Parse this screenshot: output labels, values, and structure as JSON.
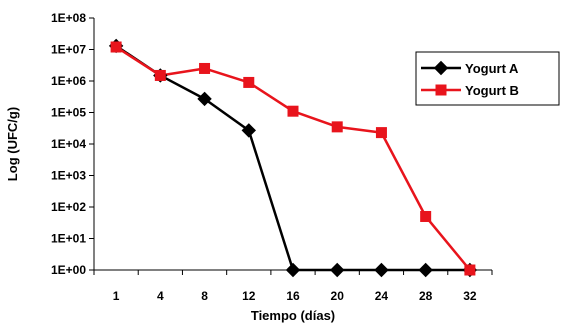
{
  "chart_data": {
    "type": "line",
    "title": "",
    "xlabel": "Tiempo (días)",
    "ylabel": "Log (UFC/g)",
    "categories": [
      "1",
      "4",
      "8",
      "12",
      "16",
      "20",
      "24",
      "28",
      "32"
    ],
    "y_scale": "log",
    "ylim": [
      1,
      100000000
    ],
    "y_ticks": [
      "1E+00",
      "1E+01",
      "1E+02",
      "1E+03",
      "1E+04",
      "1E+05",
      "1E+06",
      "1E+07",
      "1E+08"
    ],
    "grid": false,
    "legend_position": "right",
    "series": [
      {
        "name": "Yogurt A",
        "color": "#000000",
        "marker": "diamond",
        "values": [
          13000000,
          1500000,
          270000,
          27000,
          1,
          1,
          1,
          1,
          1
        ]
      },
      {
        "name": "Yogurt B",
        "color": "#e8141c",
        "marker": "square",
        "values": [
          12000000,
          1500000,
          2500000,
          900000,
          110000,
          35000,
          23000,
          50,
          1
        ]
      }
    ]
  }
}
